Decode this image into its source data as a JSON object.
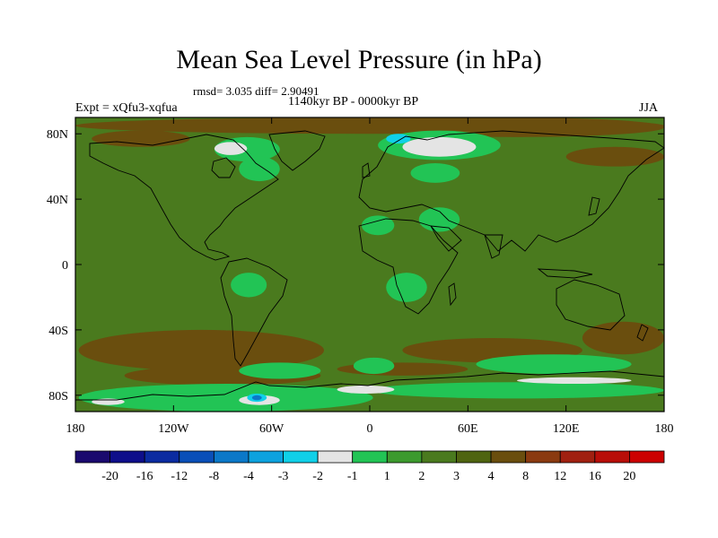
{
  "title": "Mean Sea Level Pressure (in hPa)",
  "stats_line": "rmsd= 3.035 diff= 2.90491",
  "experiment_label": "Expt = xQfu3-xqfua",
  "period_label": "1140kyr BP - 0000kyr BP",
  "season_label": "JJA",
  "map": {
    "projection": "cylindrical-equidistant",
    "lon_range": [
      -180,
      180
    ],
    "lat_range": [
      -90,
      90
    ],
    "x_tick_values": [
      -180,
      -120,
      -60,
      0,
      60,
      120,
      180
    ],
    "x_tick_labels": [
      "180",
      "120W",
      "60W",
      "0",
      "60E",
      "120E",
      "180"
    ],
    "y_tick_values": [
      80,
      40,
      0,
      -40,
      -80
    ],
    "y_tick_labels": [
      "80N",
      "40N",
      "0",
      "40S",
      "80S"
    ],
    "background_level_color": "#4a7a1e"
  },
  "colorbar": {
    "colors": [
      "#1a0a6e",
      "#0e0e8a",
      "#0b2ba0",
      "#0a4fb8",
      "#0b78c8",
      "#0da2de",
      "#10d0e8",
      "#e4e4e4",
      "#22c455",
      "#3c9a2e",
      "#4a7a1e",
      "#4f6410",
      "#6a4e0e",
      "#8a3a10",
      "#a02010",
      "#b80e08",
      "#cc0000"
    ],
    "labels": [
      "-20",
      "-16",
      "-12",
      "-8",
      "-4",
      "-3",
      "-2",
      "-1",
      "1",
      "2",
      "3",
      "4",
      "8",
      "12",
      "16",
      "20"
    ]
  },
  "anomaly_regions": [
    {
      "level": "brown",
      "color": "#6a4e0e",
      "lon": -180,
      "lat": 90,
      "w": 360,
      "h": 10
    },
    {
      "level": "brown",
      "color": "#6a4e0e",
      "lon": -170,
      "lat": 82,
      "w": 60,
      "h": 10
    },
    {
      "level": "brown",
      "color": "#6a4e0e",
      "lon": 0,
      "lat": 90,
      "w": 180,
      "h": 12
    },
    {
      "level": "brown",
      "color": "#6a4e0e",
      "lon": 120,
      "lat": 72,
      "w": 60,
      "h": 12
    },
    {
      "level": "brown",
      "color": "#6a4e0e",
      "lon": -178,
      "lat": -40,
      "w": 150,
      "h": 25
    },
    {
      "level": "brown",
      "color": "#6a4e0e",
      "lon": -150,
      "lat": -62,
      "w": 120,
      "h": 12
    },
    {
      "level": "brown",
      "color": "#6a4e0e",
      "lon": 20,
      "lat": -45,
      "w": 110,
      "h": 15
    },
    {
      "level": "brown",
      "color": "#6a4e0e",
      "lon": 130,
      "lat": -35,
      "w": 50,
      "h": 20
    },
    {
      "level": "brown",
      "color": "#6a4e0e",
      "lon": -20,
      "lat": -60,
      "w": 80,
      "h": 8
    },
    {
      "level": "green2",
      "color": "#22c455",
      "lon": -95,
      "lat": 78,
      "w": 40,
      "h": 15
    },
    {
      "level": "green2",
      "color": "#22c455",
      "lon": -80,
      "lat": 66,
      "w": 25,
      "h": 15
    },
    {
      "level": "green2",
      "color": "#22c455",
      "lon": 5,
      "lat": 82,
      "w": 75,
      "h": 18
    },
    {
      "level": "green2",
      "color": "#22c455",
      "lon": 25,
      "lat": 62,
      "w": 30,
      "h": 12
    },
    {
      "level": "green2",
      "color": "#22c455",
      "lon": -5,
      "lat": 30,
      "w": 20,
      "h": 12
    },
    {
      "level": "green2",
      "color": "#22c455",
      "lon": 30,
      "lat": 35,
      "w": 25,
      "h": 15
    },
    {
      "level": "green2",
      "color": "#22c455",
      "lon": -85,
      "lat": -5,
      "w": 22,
      "h": 15
    },
    {
      "level": "green2",
      "color": "#22c455",
      "lon": 10,
      "lat": -5,
      "w": 25,
      "h": 18
    },
    {
      "level": "green2",
      "color": "#22c455",
      "lon": -80,
      "lat": -60,
      "w": 50,
      "h": 10
    },
    {
      "level": "green2",
      "color": "#22c455",
      "lon": -10,
      "lat": -57,
      "w": 25,
      "h": 10
    },
    {
      "level": "green2",
      "color": "#22c455",
      "lon": 65,
      "lat": -55,
      "w": 95,
      "h": 12
    },
    {
      "level": "green2",
      "color": "#22c455",
      "lon": -178,
      "lat": -73,
      "w": 180,
      "h": 17
    },
    {
      "level": "green2",
      "color": "#22c455",
      "lon": 0,
      "lat": -72,
      "w": 180,
      "h": 10
    },
    {
      "level": "white",
      "color": "#e4e4e4",
      "lon": -95,
      "lat": 75,
      "w": 20,
      "h": 8
    },
    {
      "level": "white",
      "color": "#e4e4e4",
      "lon": 20,
      "lat": 78,
      "w": 45,
      "h": 12
    },
    {
      "level": "white",
      "color": "#e4e4e4",
      "lon": -170,
      "lat": -82,
      "w": 20,
      "h": 4
    },
    {
      "level": "white",
      "color": "#e4e4e4",
      "lon": -80,
      "lat": -80,
      "w": 25,
      "h": 6
    },
    {
      "level": "white",
      "color": "#e4e4e4",
      "lon": -20,
      "lat": -74,
      "w": 35,
      "h": 5
    },
    {
      "level": "white",
      "color": "#e4e4e4",
      "lon": 90,
      "lat": -69,
      "w": 70,
      "h": 4
    },
    {
      "level": "cyan",
      "color": "#10d0e8",
      "lon": 10,
      "lat": 80,
      "w": 15,
      "h": 6
    },
    {
      "level": "cyan",
      "color": "#10d0e8",
      "lon": -75,
      "lat": -79,
      "w": 12,
      "h": 5
    },
    {
      "level": "blue",
      "color": "#0b78c8",
      "lon": -72,
      "lat": -80,
      "w": 6,
      "h": 3
    }
  ]
}
